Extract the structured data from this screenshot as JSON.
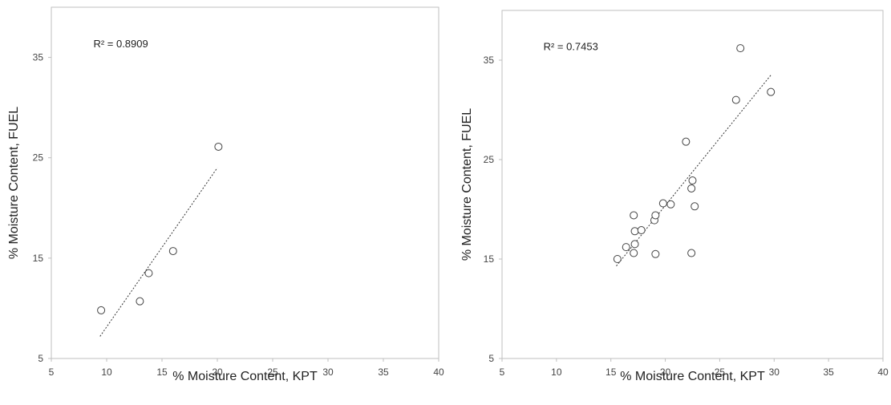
{
  "chart_data": [
    {
      "type": "scatter",
      "xlabel": "% Moisture Content, KPT",
      "ylabel": "% Moisture Content, FUEL",
      "xlim": [
        5,
        40
      ],
      "ylim": [
        5,
        40
      ],
      "xticks": [
        "5",
        "10",
        "15",
        "20",
        "25",
        "30",
        "35",
        "40"
      ],
      "yticks": [
        "5",
        "15",
        "25",
        "35"
      ],
      "grid": false,
      "annotation": "R² = 0.8909",
      "points": [
        {
          "x": 9.5,
          "y": 9.8
        },
        {
          "x": 13.0,
          "y": 10.7
        },
        {
          "x": 13.8,
          "y": 13.5
        },
        {
          "x": 16.0,
          "y": 15.7
        },
        {
          "x": 20.1,
          "y": 26.1
        }
      ],
      "trendline": {
        "x": [
          9.4,
          20.0
        ],
        "y": [
          7.2,
          24.0
        ]
      }
    },
    {
      "type": "scatter",
      "xlabel": "% Moisture Content, KPT",
      "ylabel": "% Moisture Content, FUEL",
      "xlim": [
        5,
        40
      ],
      "ylim": [
        5,
        40
      ],
      "xticks": [
        "5",
        "10",
        "15",
        "20",
        "25",
        "30",
        "35",
        "40"
      ],
      "yticks": [
        "5",
        "15",
        "25",
        "35"
      ],
      "grid": false,
      "annotation": "R² = 0.7453",
      "points": [
        {
          "x": 15.6,
          "y": 15.0
        },
        {
          "x": 16.4,
          "y": 16.2
        },
        {
          "x": 17.1,
          "y": 15.6
        },
        {
          "x": 17.2,
          "y": 16.5
        },
        {
          "x": 17.2,
          "y": 17.8
        },
        {
          "x": 17.1,
          "y": 19.4
        },
        {
          "x": 17.8,
          "y": 17.9
        },
        {
          "x": 19.0,
          "y": 18.9
        },
        {
          "x": 19.1,
          "y": 19.4
        },
        {
          "x": 19.1,
          "y": 15.5
        },
        {
          "x": 19.8,
          "y": 20.6
        },
        {
          "x": 20.5,
          "y": 20.5
        },
        {
          "x": 21.9,
          "y": 26.8
        },
        {
          "x": 22.4,
          "y": 22.1
        },
        {
          "x": 22.5,
          "y": 22.9
        },
        {
          "x": 22.7,
          "y": 20.3
        },
        {
          "x": 22.4,
          "y": 15.6
        },
        {
          "x": 26.5,
          "y": 31.0
        },
        {
          "x": 26.9,
          "y": 36.2
        },
        {
          "x": 29.7,
          "y": 31.8
        }
      ],
      "trendline": {
        "x": [
          15.5,
          29.7
        ],
        "y": [
          14.3,
          33.5
        ]
      }
    }
  ]
}
